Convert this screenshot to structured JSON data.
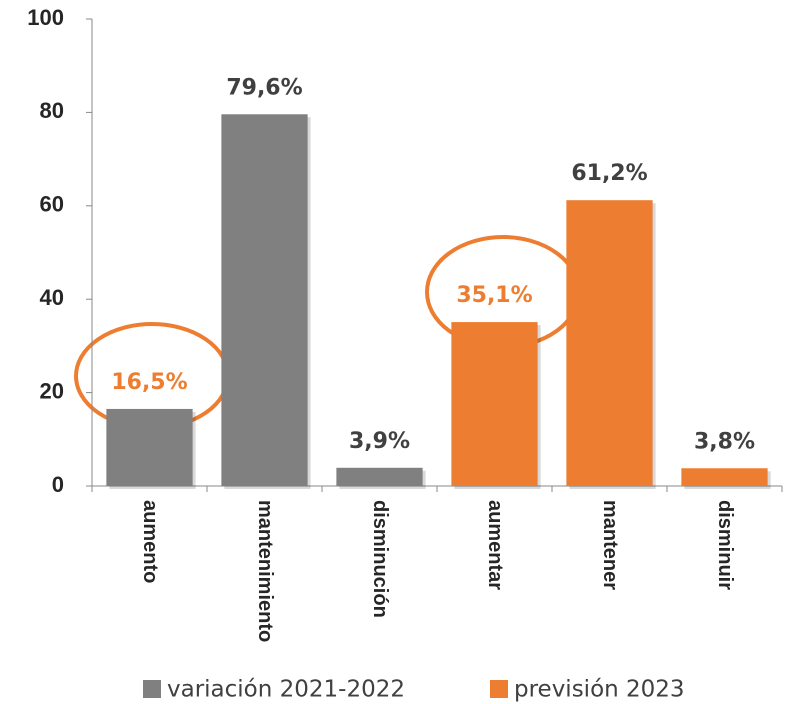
{
  "chart_data": {
    "type": "bar",
    "categories": [
      "aumento",
      "mantenimiento",
      "disminución",
      "aumentar",
      "mantener",
      "disminuir"
    ],
    "series": [
      {
        "name": "variación 2021-2022",
        "color": "#808080",
        "values": [
          16.5,
          79.6,
          3.9,
          null,
          null,
          null
        ],
        "value_labels": [
          "16,5%",
          "79,6%",
          "3,9%",
          null,
          null,
          null
        ]
      },
      {
        "name": "previsión 2023",
        "color": "#ed7d31",
        "values": [
          null,
          null,
          null,
          35.1,
          61.2,
          3.8
        ],
        "value_labels": [
          null,
          null,
          null,
          "35,1%",
          "61,2%",
          "3,8%"
        ]
      }
    ],
    "ylim": [
      0,
      100
    ],
    "yticks": [
      0,
      20,
      40,
      60,
      80,
      100
    ],
    "grid": false
  }
}
